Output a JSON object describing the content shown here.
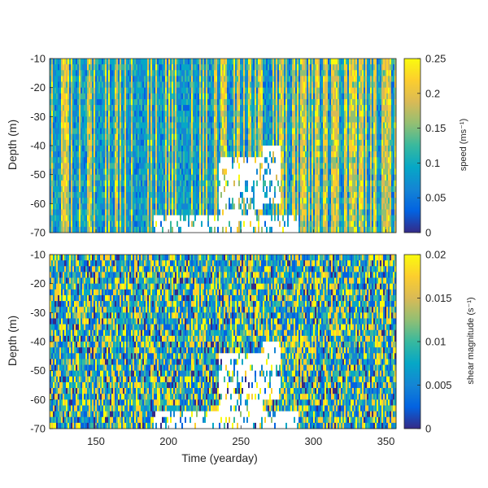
{
  "chart_data": [
    {
      "type": "heatmap",
      "id": "speed-panel",
      "xlabel": "",
      "ylabel": "Depth (m)",
      "xlim": [
        118,
        357
      ],
      "ylim": [
        -70,
        -10
      ],
      "xticks": [],
      "yticks": [
        "-10",
        "-20",
        "-30",
        "-40",
        "-50",
        "-60",
        "-70"
      ],
      "colorbar": {
        "label": "speed (ms⁻¹)",
        "range": [
          0,
          0.25
        ],
        "ticks": [
          "0",
          "0.05",
          "0.1",
          "0.15",
          "0.2",
          "0.25"
        ],
        "colormap": "parula"
      },
      "missing_regions": [
        {
          "x": [
            235,
            265
          ],
          "y": [
            -65,
            -45
          ]
        },
        {
          "x": [
            265,
            277
          ],
          "y": [
            -60,
            -40
          ]
        },
        {
          "x": [
            190,
            290
          ],
          "y": [
            -70,
            -64
          ]
        }
      ]
    },
    {
      "type": "heatmap",
      "id": "shear-panel",
      "xlabel": "Time (yearday)",
      "ylabel": "Depth (m)",
      "xlim": [
        118,
        357
      ],
      "ylim": [
        -70,
        -10
      ],
      "xticks": [
        "150",
        "200",
        "250",
        "300",
        "350"
      ],
      "yticks": [
        "-10",
        "-20",
        "-30",
        "-40",
        "-50",
        "-60",
        "-70"
      ],
      "colorbar": {
        "label": "shear magnitude (s⁻¹)",
        "range": [
          0,
          0.02
        ],
        "ticks": [
          "0",
          "0.005",
          "0.01",
          "0.015",
          "0.02"
        ],
        "colormap": "parula"
      },
      "missing_regions": [
        {
          "x": [
            235,
            265
          ],
          "y": [
            -65,
            -45
          ]
        },
        {
          "x": [
            265,
            277
          ],
          "y": [
            -60,
            -40
          ]
        },
        {
          "x": [
            190,
            290
          ],
          "y": [
            -70,
            -64
          ]
        }
      ]
    }
  ],
  "colors": {
    "parula": [
      "#352a87",
      "#0363e1",
      "#1485d4",
      "#06a7c6",
      "#38b99e",
      "#92bf73",
      "#d9ba56",
      "#fcce2e",
      "#f9fb0e"
    ],
    "missing": "#ffffff",
    "axis": "#262626"
  }
}
